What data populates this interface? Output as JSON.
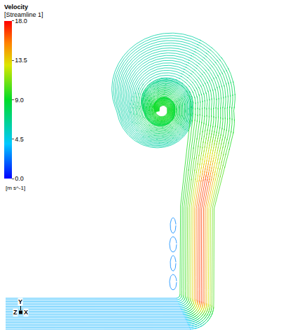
{
  "chart_data": {
    "type": "streamline",
    "title": "Velocity",
    "subtitle": "[Streamline 1]",
    "units": "[m s^-1]",
    "colorbar": {
      "range": [
        0,
        18
      ],
      "ticks": [
        {
          "value": 0,
          "label": "0.0"
        },
        {
          "value": 4.5,
          "label": "4.5"
        },
        {
          "value": 9,
          "label": "9.0"
        },
        {
          "value": 13.5,
          "label": "13.5"
        },
        {
          "value": 18,
          "label": "18.0"
        }
      ]
    },
    "velocity": {
      "inlet": 3.5,
      "jet_core": 17,
      "jet_edge": 9.5,
      "head": 6,
      "vortex": 9,
      "recirculation": 2.5
    },
    "triad": {
      "y": "Y",
      "z": "Z",
      "x": "X"
    }
  }
}
